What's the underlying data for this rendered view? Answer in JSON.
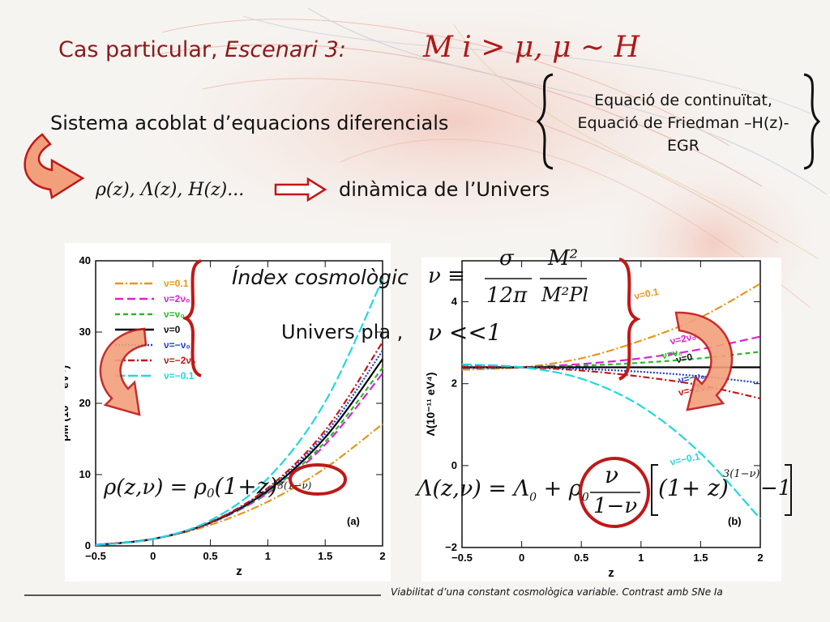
{
  "slide": {
    "title_prefix": "Cas particular, ",
    "title_italic": "Escenari 3:",
    "title_math": "M i > μ,  μ ~ H",
    "system_text": "Sistema acoblat d’equacions diferencials",
    "equations": [
      "Equació de continuïtat,",
      "Equació de Friedman –H(z)-",
      "EGR"
    ],
    "variables_math": "ρ(z),  Λ(z),  H(z)...",
    "dynamics_text": "dinàmica de l’Univers",
    "index_text": "Índex cosmològic",
    "flat_text": "Univers pla ,",
    "nu_def_math": {
      "lhs": "ν ≡",
      "frac1_num": "σ",
      "frac1_den": "12π",
      "frac2_num": "M²",
      "frac2_den": "M²Pl"
    },
    "nu_small_math": "ν <<1",
    "rho_formula": {
      "lhs": "ρ(z,ν) = ρ",
      "sub": "0",
      "rest": "(1+z)",
      "exp": "3(1−ν)"
    },
    "lambda_formula": {
      "lhs": "Λ(z,ν) = Λ",
      "sub0": "0",
      "plus": "+ ρ",
      "subr": "0",
      "num": "ν",
      "den": "1−ν",
      "bracket": "(1+ z)",
      "exp": "3(1−ν)",
      "tail": "−1"
    },
    "footer": "Viabilitat d’una constant cosmològica variable. Contrast amb SNe Ia",
    "accent_color": "#b01818"
  },
  "chart_data": [
    {
      "type": "line",
      "panel_label": "(a)",
      "xlabel": "z",
      "ylabel": "ρM (10⁻¹¹ eV⁴)",
      "xlim": [
        -0.5,
        2
      ],
      "ylim": [
        0,
        40
      ],
      "x_ticks": [
        "−0.5",
        "0",
        "0.5",
        "1",
        "1.5",
        "2"
      ],
      "y_ticks": [
        "0",
        "10",
        "20",
        "30",
        "40"
      ],
      "legend_position": "top-left",
      "series": [
        {
          "name": "ν=0.1",
          "color": "#e6961e",
          "dash": "10,3,2,3",
          "x": [
            -0.5,
            0,
            0.5,
            1,
            1.5,
            2
          ],
          "values": [
            0.13,
            0.97,
            2.94,
            6.21,
            10.9,
            17.1
          ]
        },
        {
          "name": "ν=2ν₀",
          "color": "#e020d0",
          "dash": "10,5",
          "x": [
            -0.5,
            0,
            0.5,
            1,
            1.5,
            2
          ],
          "values": [
            0.12,
            0.97,
            3.2,
            7.4,
            14.2,
            24.2
          ]
        },
        {
          "name": "ν=ν₀",
          "color": "#2aba2a",
          "dash": "6,4",
          "x": [
            -0.5,
            0,
            0.5,
            1,
            1.5,
            2
          ],
          "values": [
            0.12,
            0.97,
            3.23,
            7.55,
            14.6,
            25.0
          ]
        },
        {
          "name": "ν=0",
          "color": "#000000",
          "dash": "",
          "x": [
            -0.5,
            0,
            0.5,
            1,
            1.5,
            2
          ],
          "values": [
            0.12,
            0.97,
            3.27,
            7.76,
            15.2,
            26.2
          ]
        },
        {
          "name": "ν=−ν₀",
          "color": "#2040c8",
          "dash": "2,2",
          "x": [
            -0.5,
            0,
            0.5,
            1,
            1.5,
            2
          ],
          "values": [
            0.12,
            0.97,
            3.31,
            7.95,
            15.7,
            27.4
          ]
        },
        {
          "name": "ν=−2ν₀",
          "color": "#c01818",
          "dash": "8,3,2,3",
          "x": [
            -0.5,
            0,
            0.5,
            1,
            1.5,
            2
          ],
          "values": [
            0.12,
            0.97,
            3.34,
            8.12,
            16.2,
            28.6
          ]
        },
        {
          "name": "ν=−0.1",
          "color": "#20d8e0",
          "dash": "12,4",
          "x": [
            -0.5,
            0,
            0.5,
            1,
            1.5,
            2
          ],
          "values": [
            0.11,
            0.97,
            3.58,
            9.47,
            20.2,
            37.4
          ]
        }
      ]
    },
    {
      "type": "line",
      "panel_label": "(b)",
      "xlabel": "z",
      "ylabel": "Λ(10⁻¹¹ eV⁴)",
      "xlim": [
        -0.5,
        2
      ],
      "ylim": [
        -2,
        5
      ],
      "x_ticks": [
        "−0.5",
        "0",
        "0.5",
        "1",
        "1.5",
        "2"
      ],
      "y_ticks": [
        "−2",
        "0",
        "2",
        "4"
      ],
      "series": [
        {
          "name": "ν=0.1",
          "color": "#e6961e",
          "dash": "10,3,2,3",
          "x": [
            -0.5,
            0,
            0.5,
            1,
            1.5,
            2
          ],
          "values": [
            2.34,
            2.4,
            2.62,
            3.05,
            3.62,
            4.44
          ]
        },
        {
          "name": "ν=2ν₀",
          "color": "#e020d0",
          "dash": "10,5",
          "x": [
            -0.5,
            0,
            0.5,
            1,
            1.5,
            2
          ],
          "values": [
            2.38,
            2.4,
            2.48,
            2.62,
            2.84,
            3.15
          ]
        },
        {
          "name": "ν=ν₀",
          "color": "#2aba2a",
          "dash": "6,4",
          "x": [
            -0.5,
            0,
            0.5,
            1,
            1.5,
            2
          ],
          "values": [
            2.39,
            2.4,
            2.44,
            2.51,
            2.62,
            2.78
          ]
        },
        {
          "name": "ν=0",
          "color": "#000000",
          "dash": "",
          "x": [
            -0.5,
            2
          ],
          "values": [
            2.4,
            2.4
          ]
        },
        {
          "name": "ν=−ν₀",
          "color": "#2040c8",
          "dash": "2,2",
          "x": [
            -0.5,
            0,
            0.5,
            1,
            1.5,
            2
          ],
          "values": [
            2.41,
            2.4,
            2.36,
            2.29,
            2.18,
            2.02
          ]
        },
        {
          "name": "ν=−2ν₀",
          "color": "#c01818",
          "dash": "8,3,2,3",
          "x": [
            -0.5,
            0,
            0.5,
            1,
            1.5,
            2
          ],
          "values": [
            2.42,
            2.4,
            2.32,
            2.17,
            1.96,
            1.64
          ]
        },
        {
          "name": "ν=−0.1",
          "color": "#20d8e0",
          "dash": "12,4",
          "x": [
            -0.5,
            0,
            0.5,
            1,
            1.5,
            2
          ],
          "values": [
            2.47,
            2.4,
            2.12,
            1.45,
            0.3,
            -1.3
          ]
        }
      ]
    }
  ]
}
